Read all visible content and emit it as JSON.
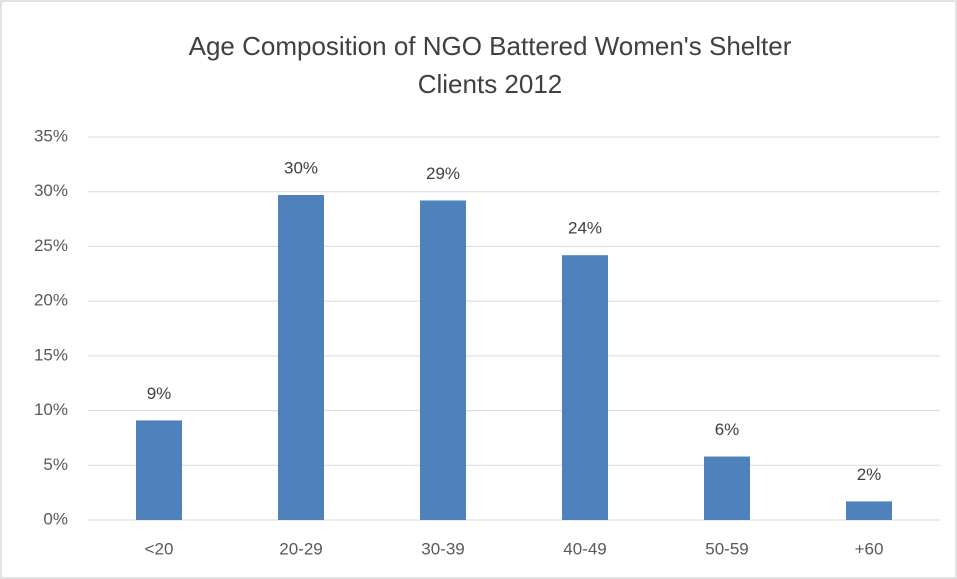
{
  "chart_data": {
    "type": "bar",
    "title": [
      "Age Composition of NGO Battered Women's Shelter",
      "Clients 2012"
    ],
    "categories": [
      "<20",
      "20-29",
      "30-39",
      "40-49",
      "50-59",
      "+60"
    ],
    "values": [
      9.1,
      29.7,
      29.2,
      24.2,
      5.8,
      1.7
    ],
    "value_labels": [
      "9%",
      "30%",
      "29%",
      "24%",
      "6%",
      "2%"
    ],
    "color": "#4f81bd",
    "ylim": [
      0,
      35
    ],
    "yticks": [
      {
        "value": 0,
        "label": "0%"
      },
      {
        "value": 5,
        "label": "5%"
      },
      {
        "value": 10,
        "label": "10%"
      },
      {
        "value": 15,
        "label": "15%"
      },
      {
        "value": 20,
        "label": "20%"
      },
      {
        "value": 25,
        "label": "25%"
      },
      {
        "value": 30,
        "label": "30%"
      },
      {
        "value": 35,
        "label": "35%"
      }
    ],
    "grid": true
  }
}
